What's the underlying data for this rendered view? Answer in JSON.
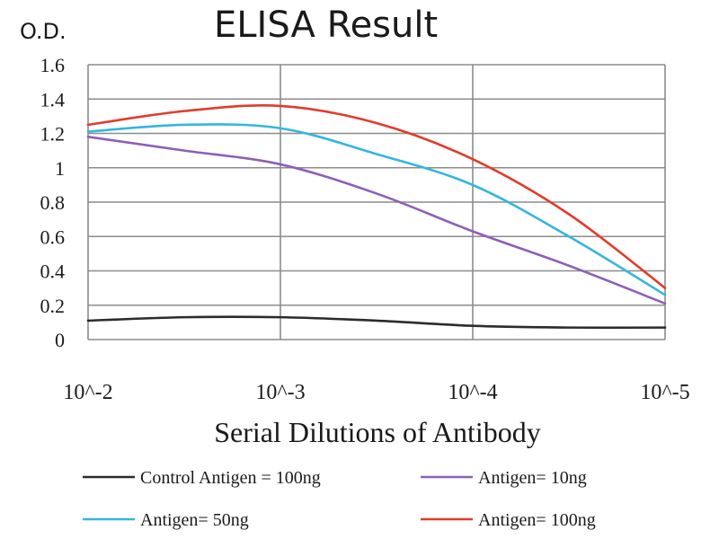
{
  "chart_data": {
    "type": "line",
    "title": "ELISA Result",
    "ylabel": "O.D.",
    "xlabel": "Serial Dilutions of Antibody",
    "categories": [
      "10^-2",
      "10^-3",
      "10^-4",
      "10^-5"
    ],
    "x": [
      1,
      2,
      3,
      4
    ],
    "ylim": [
      0,
      1.6
    ],
    "yticks": [
      "0",
      "0.2",
      "0.4",
      "0.6",
      "0.8",
      "1",
      "1.2",
      "1.4",
      "1.6"
    ],
    "grid": true,
    "legend_position": "bottom",
    "series": [
      {
        "name": "Control Antigen = 100ng",
        "color": "#2b2b2b",
        "x": [
          1,
          1.5,
          2,
          2.5,
          3,
          3.5,
          4
        ],
        "values": [
          0.11,
          0.13,
          0.13,
          0.11,
          0.08,
          0.07,
          0.07
        ]
      },
      {
        "name": "Antigen= 10ng",
        "color": "#8e5fb8",
        "x": [
          1,
          1.5,
          2,
          2.5,
          3,
          3.5,
          4
        ],
        "values": [
          1.18,
          1.1,
          1.02,
          0.85,
          0.63,
          0.43,
          0.21
        ]
      },
      {
        "name": "Antigen= 50ng",
        "color": "#33b6e0",
        "x": [
          1,
          1.5,
          2,
          2.5,
          3,
          3.5,
          4
        ],
        "values": [
          1.21,
          1.25,
          1.23,
          1.08,
          0.9,
          0.6,
          0.26
        ]
      },
      {
        "name": "Antigen= 100ng",
        "color": "#e23b2b",
        "x": [
          1,
          1.5,
          2,
          2.5,
          3,
          3.5,
          4
        ],
        "values": [
          1.25,
          1.33,
          1.36,
          1.26,
          1.05,
          0.73,
          0.3
        ]
      }
    ]
  }
}
